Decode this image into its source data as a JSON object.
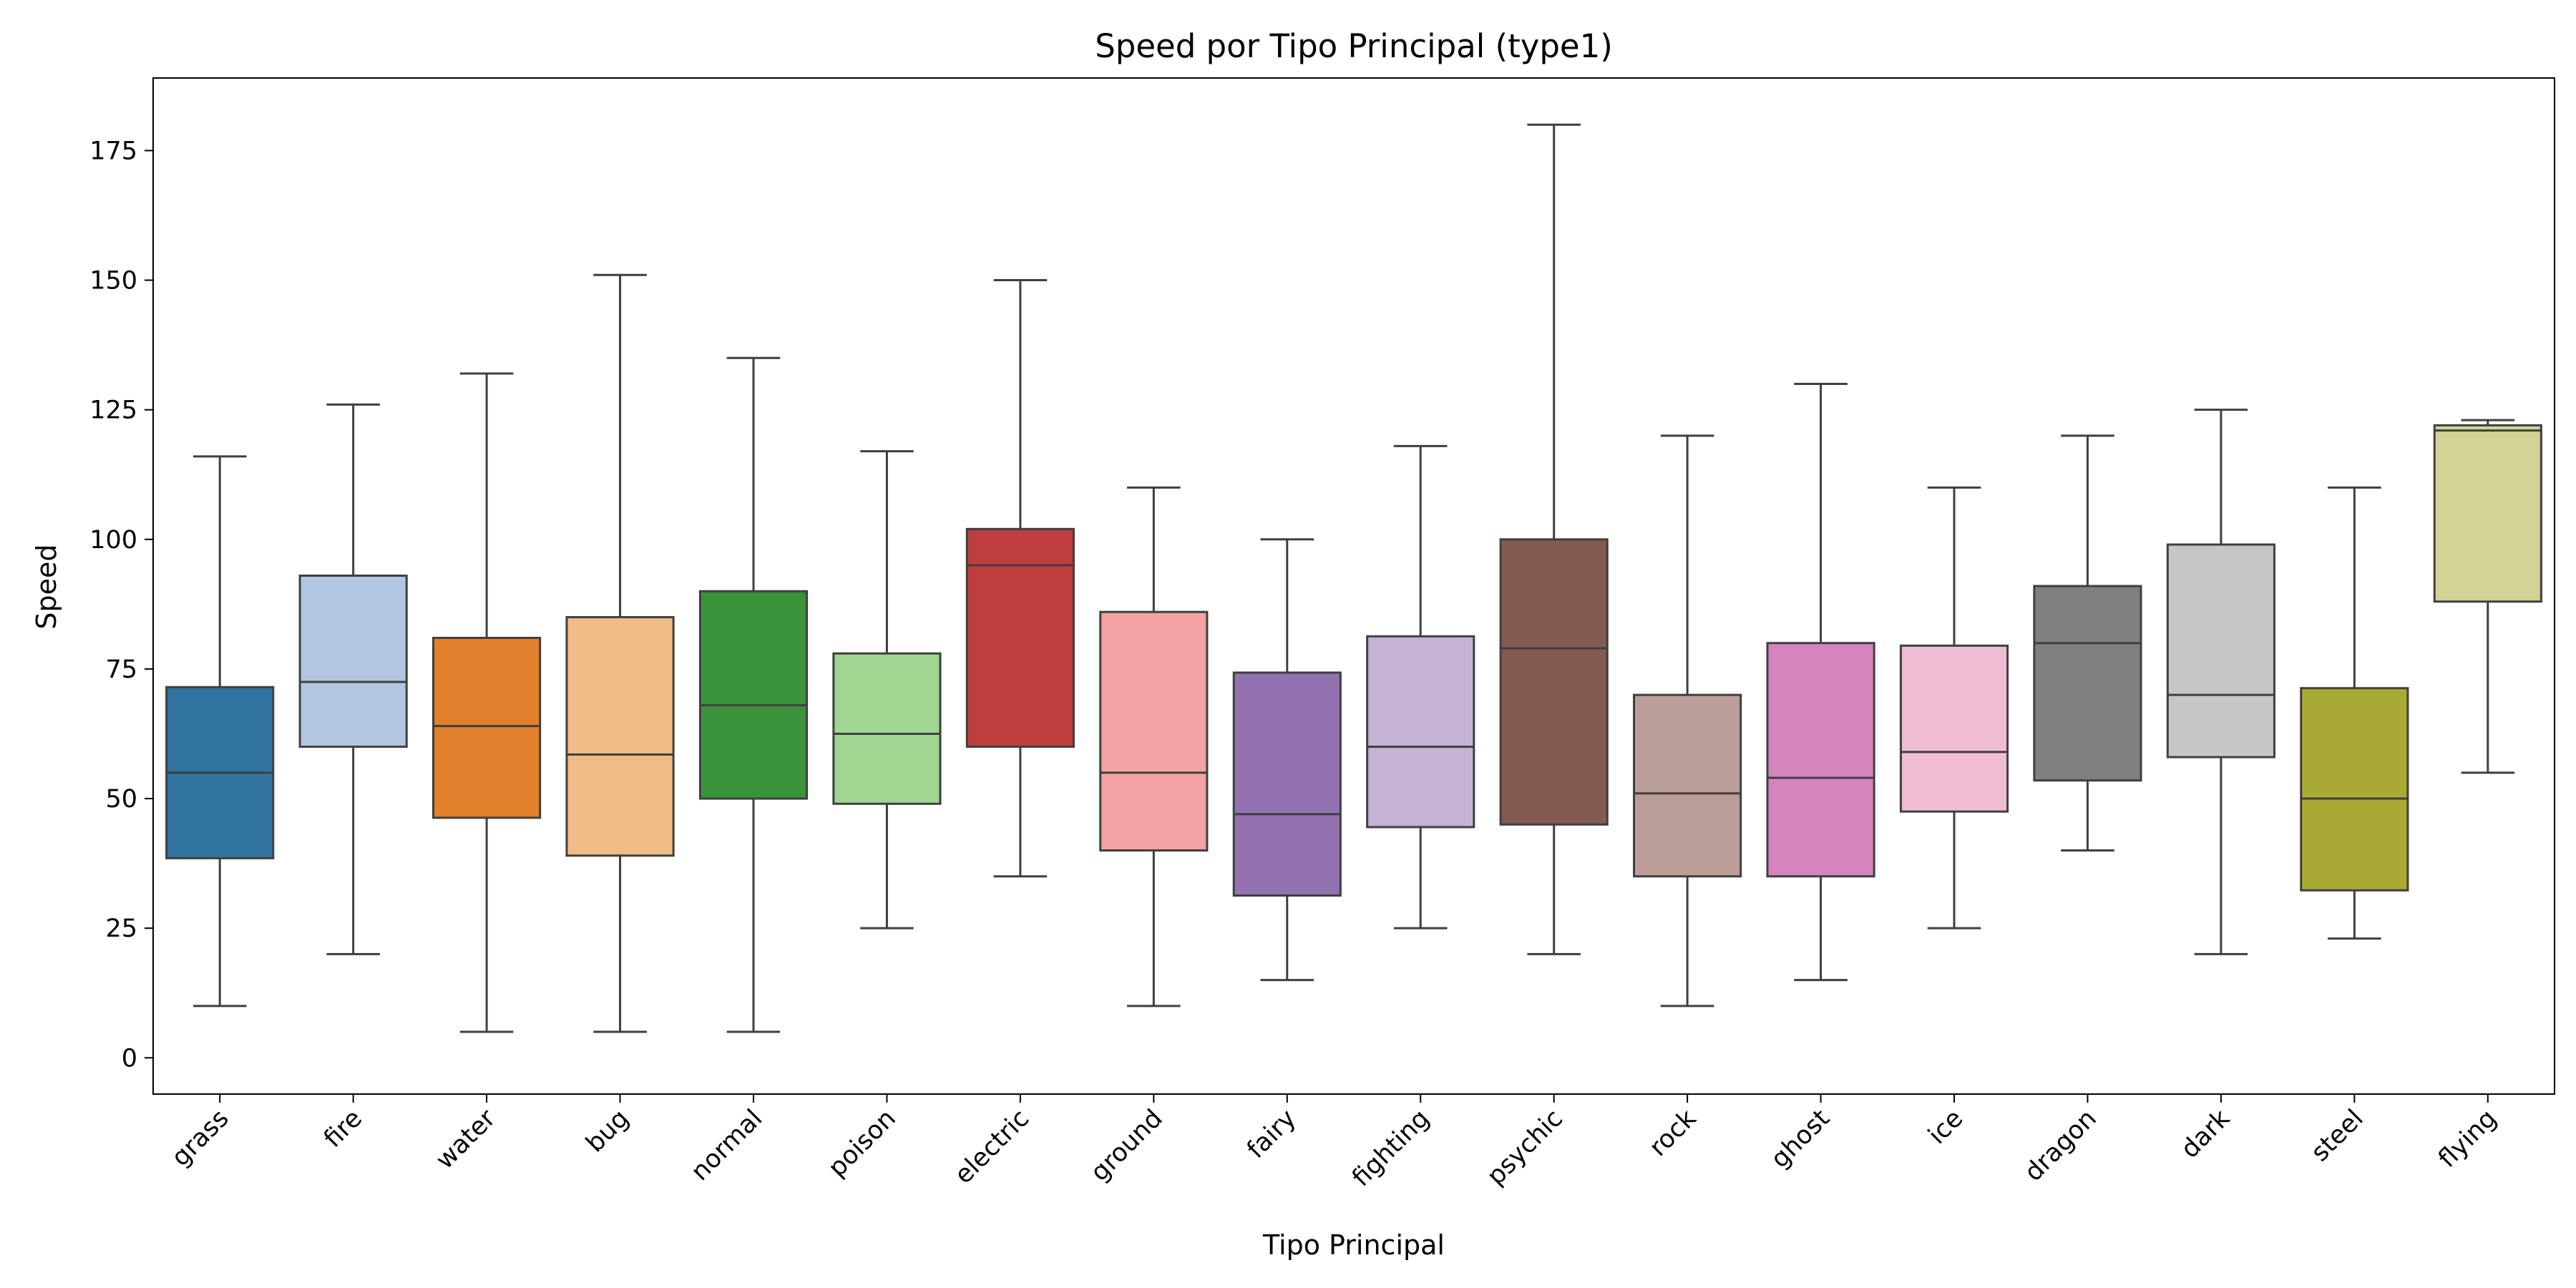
{
  "chart_data": {
    "type": "box",
    "title": "Speed por Tipo Principal (type1)",
    "xlabel": "Tipo Principal",
    "ylabel": "Speed",
    "ylim": [
      -7,
      189
    ],
    "yticks": [
      0,
      25,
      50,
      75,
      100,
      125,
      150,
      175
    ],
    "grid": false,
    "categories": [
      "grass",
      "fire",
      "water",
      "bug",
      "normal",
      "poison",
      "electric",
      "ground",
      "fairy",
      "fighting",
      "psychic",
      "rock",
      "ghost",
      "ice",
      "dragon",
      "dark",
      "steel",
      "flying"
    ],
    "boxes": [
      {
        "category": "grass",
        "min": 10,
        "q1": 38.5,
        "median": 55,
        "q3": 71.5,
        "max": 116,
        "color": "#3274a1"
      },
      {
        "category": "fire",
        "min": 20,
        "q1": 60,
        "median": 72.5,
        "q3": 93,
        "max": 126,
        "color": "#b2c6e2"
      },
      {
        "category": "water",
        "min": 5,
        "q1": 46.3,
        "median": 64,
        "q3": 81,
        "max": 132,
        "color": "#e1812c"
      },
      {
        "category": "bug",
        "min": 5,
        "q1": 39,
        "median": 58.5,
        "q3": 85,
        "max": 151,
        "color": "#efbb86"
      },
      {
        "category": "normal",
        "min": 5,
        "q1": 50,
        "median": 68,
        "q3": 90,
        "max": 135,
        "color": "#3a923a"
      },
      {
        "category": "poison",
        "min": 25,
        "q1": 49,
        "median": 62.5,
        "q3": 78,
        "max": 117,
        "color": "#a0d592"
      },
      {
        "category": "electric",
        "min": 35,
        "q1": 60,
        "median": 95,
        "q3": 102,
        "max": 150,
        "color": "#c03d3e"
      },
      {
        "category": "ground",
        "min": 10,
        "q1": 40,
        "median": 55,
        "q3": 86,
        "max": 110,
        "color": "#f3a3a3"
      },
      {
        "category": "fairy",
        "min": 15,
        "q1": 31.3,
        "median": 47,
        "q3": 74.3,
        "max": 100,
        "color": "#9372b2"
      },
      {
        "category": "fighting",
        "min": 25,
        "q1": 44.5,
        "median": 60,
        "q3": 81.3,
        "max": 118,
        "color": "#c4b3d5"
      },
      {
        "category": "psychic",
        "min": 20,
        "q1": 45,
        "median": 79,
        "q3": 100,
        "max": 180,
        "color": "#845b53"
      },
      {
        "category": "rock",
        "min": 10,
        "q1": 35,
        "median": 51,
        "q3": 70,
        "max": 120,
        "color": "#bc9e98"
      },
      {
        "category": "ghost",
        "min": 15,
        "q1": 35,
        "median": 54,
        "q3": 80,
        "max": 130,
        "color": "#d684bd"
      },
      {
        "category": "ice",
        "min": 25,
        "q1": 47.5,
        "median": 59,
        "q3": 79.5,
        "max": 110,
        "color": "#f0bcd4"
      },
      {
        "category": "dragon",
        "min": 40,
        "q1": 53.5,
        "median": 80,
        "q3": 91,
        "max": 120,
        "color": "#7f7f7f"
      },
      {
        "category": "dark",
        "min": 20,
        "q1": 58,
        "median": 70,
        "q3": 99,
        "max": 125,
        "color": "#c6c6c6"
      },
      {
        "category": "steel",
        "min": 23,
        "q1": 32.3,
        "median": 50,
        "q3": 71.3,
        "max": 110,
        "color": "#a9aa35"
      },
      {
        "category": "flying",
        "min": 55,
        "q1": 88,
        "median": 121,
        "q3": 122,
        "max": 123,
        "color": "#d3d395"
      }
    ]
  }
}
